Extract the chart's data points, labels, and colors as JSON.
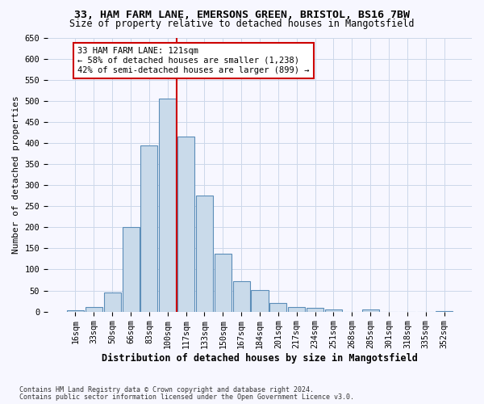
{
  "title_line1": "33, HAM FARM LANE, EMERSONS GREEN, BRISTOL, BS16 7BW",
  "title_line2": "Size of property relative to detached houses in Mangotsfield",
  "xlabel": "Distribution of detached houses by size in Mangotsfield",
  "ylabel": "Number of detached properties",
  "categories": [
    "16sqm",
    "33sqm",
    "50sqm",
    "66sqm",
    "83sqm",
    "100sqm",
    "117sqm",
    "133sqm",
    "150sqm",
    "167sqm",
    "184sqm",
    "201sqm",
    "217sqm",
    "234sqm",
    "251sqm",
    "268sqm",
    "285sqm",
    "301sqm",
    "318sqm",
    "335sqm",
    "352sqm"
  ],
  "values": [
    3,
    10,
    45,
    200,
    395,
    505,
    415,
    275,
    137,
    73,
    51,
    20,
    11,
    8,
    5,
    0,
    5,
    0,
    0,
    0,
    2
  ],
  "bar_color": "#c9daea",
  "bar_edge_color": "#5b8db8",
  "annotation_line1": "33 HAM FARM LANE: 121sqm",
  "annotation_line2": "← 58% of detached houses are smaller (1,238)",
  "annotation_line3": "42% of semi-detached houses are larger (899) →",
  "marker_line_color": "#cc0000",
  "ylim": [
    0,
    650
  ],
  "yticks": [
    0,
    50,
    100,
    150,
    200,
    250,
    300,
    350,
    400,
    450,
    500,
    550,
    600,
    650
  ],
  "footnote1": "Contains HM Land Registry data © Crown copyright and database right 2024.",
  "footnote2": "Contains public sector information licensed under the Open Government Licence v3.0.",
  "grid_color": "#ccd8ea",
  "background_color": "#f7f7ff"
}
